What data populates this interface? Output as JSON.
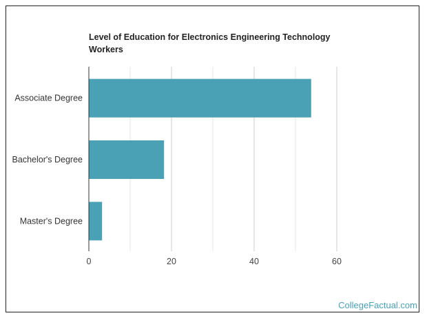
{
  "chart_data": {
    "type": "bar",
    "orientation": "horizontal",
    "title": "Level of Education for Electronics Engineering Technology Workers",
    "categories": [
      "Associate Degree",
      "Bachelor's Degree",
      "Master's Degree"
    ],
    "values": [
      53.8,
      18.2,
      3.2
    ],
    "xlim": [
      0,
      60
    ],
    "xticks": [
      0,
      20,
      40,
      60
    ],
    "xlabel": "",
    "ylabel": "",
    "grid": true,
    "bar_color": "#4aa0b5"
  },
  "brand": "CollegeFactual.com"
}
